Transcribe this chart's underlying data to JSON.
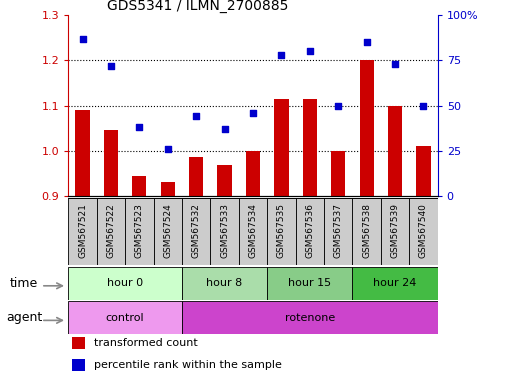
{
  "title": "GDS5341 / ILMN_2700885",
  "samples": [
    "GSM567521",
    "GSM567522",
    "GSM567523",
    "GSM567524",
    "GSM567532",
    "GSM567533",
    "GSM567534",
    "GSM567535",
    "GSM567536",
    "GSM567537",
    "GSM567538",
    "GSM567539",
    "GSM567540"
  ],
  "bar_values": [
    1.09,
    1.045,
    0.945,
    0.93,
    0.985,
    0.968,
    1.0,
    1.115,
    1.115,
    1.0,
    1.2,
    1.1,
    1.01
  ],
  "scatter_values": [
    87,
    72,
    38,
    26,
    44,
    37,
    46,
    78,
    80,
    50,
    85,
    73,
    50
  ],
  "bar_color": "#cc0000",
  "scatter_color": "#0000cc",
  "ylim_left": [
    0.9,
    1.3
  ],
  "ylim_right": [
    0,
    100
  ],
  "yticks_left": [
    0.9,
    1.0,
    1.1,
    1.2,
    1.3
  ],
  "yticks_right": [
    0,
    25,
    50,
    75,
    100
  ],
  "ytick_labels_right": [
    "0",
    "25",
    "50",
    "75",
    "100%"
  ],
  "hlines": [
    1.0,
    1.1,
    1.2
  ],
  "time_groups": [
    {
      "label": "hour 0",
      "start": 0,
      "end": 4
    },
    {
      "label": "hour 8",
      "start": 4,
      "end": 7
    },
    {
      "label": "hour 15",
      "start": 7,
      "end": 10
    },
    {
      "label": "hour 24",
      "start": 10,
      "end": 13
    }
  ],
  "time_colors": [
    "#ccffcc",
    "#aaddaa",
    "#88cc88",
    "#44bb44"
  ],
  "agent_groups": [
    {
      "label": "control",
      "start": 0,
      "end": 4
    },
    {
      "label": "rotenone",
      "start": 4,
      "end": 13
    }
  ],
  "agent_colors": [
    "#ee99ee",
    "#cc44cc"
  ],
  "legend_items": [
    {
      "label": "transformed count",
      "color": "#cc0000"
    },
    {
      "label": "percentile rank within the sample",
      "color": "#0000cc"
    }
  ],
  "time_label": "time",
  "agent_label": "agent",
  "sample_bg_color": "#cccccc",
  "bar_bottom": 0.9
}
